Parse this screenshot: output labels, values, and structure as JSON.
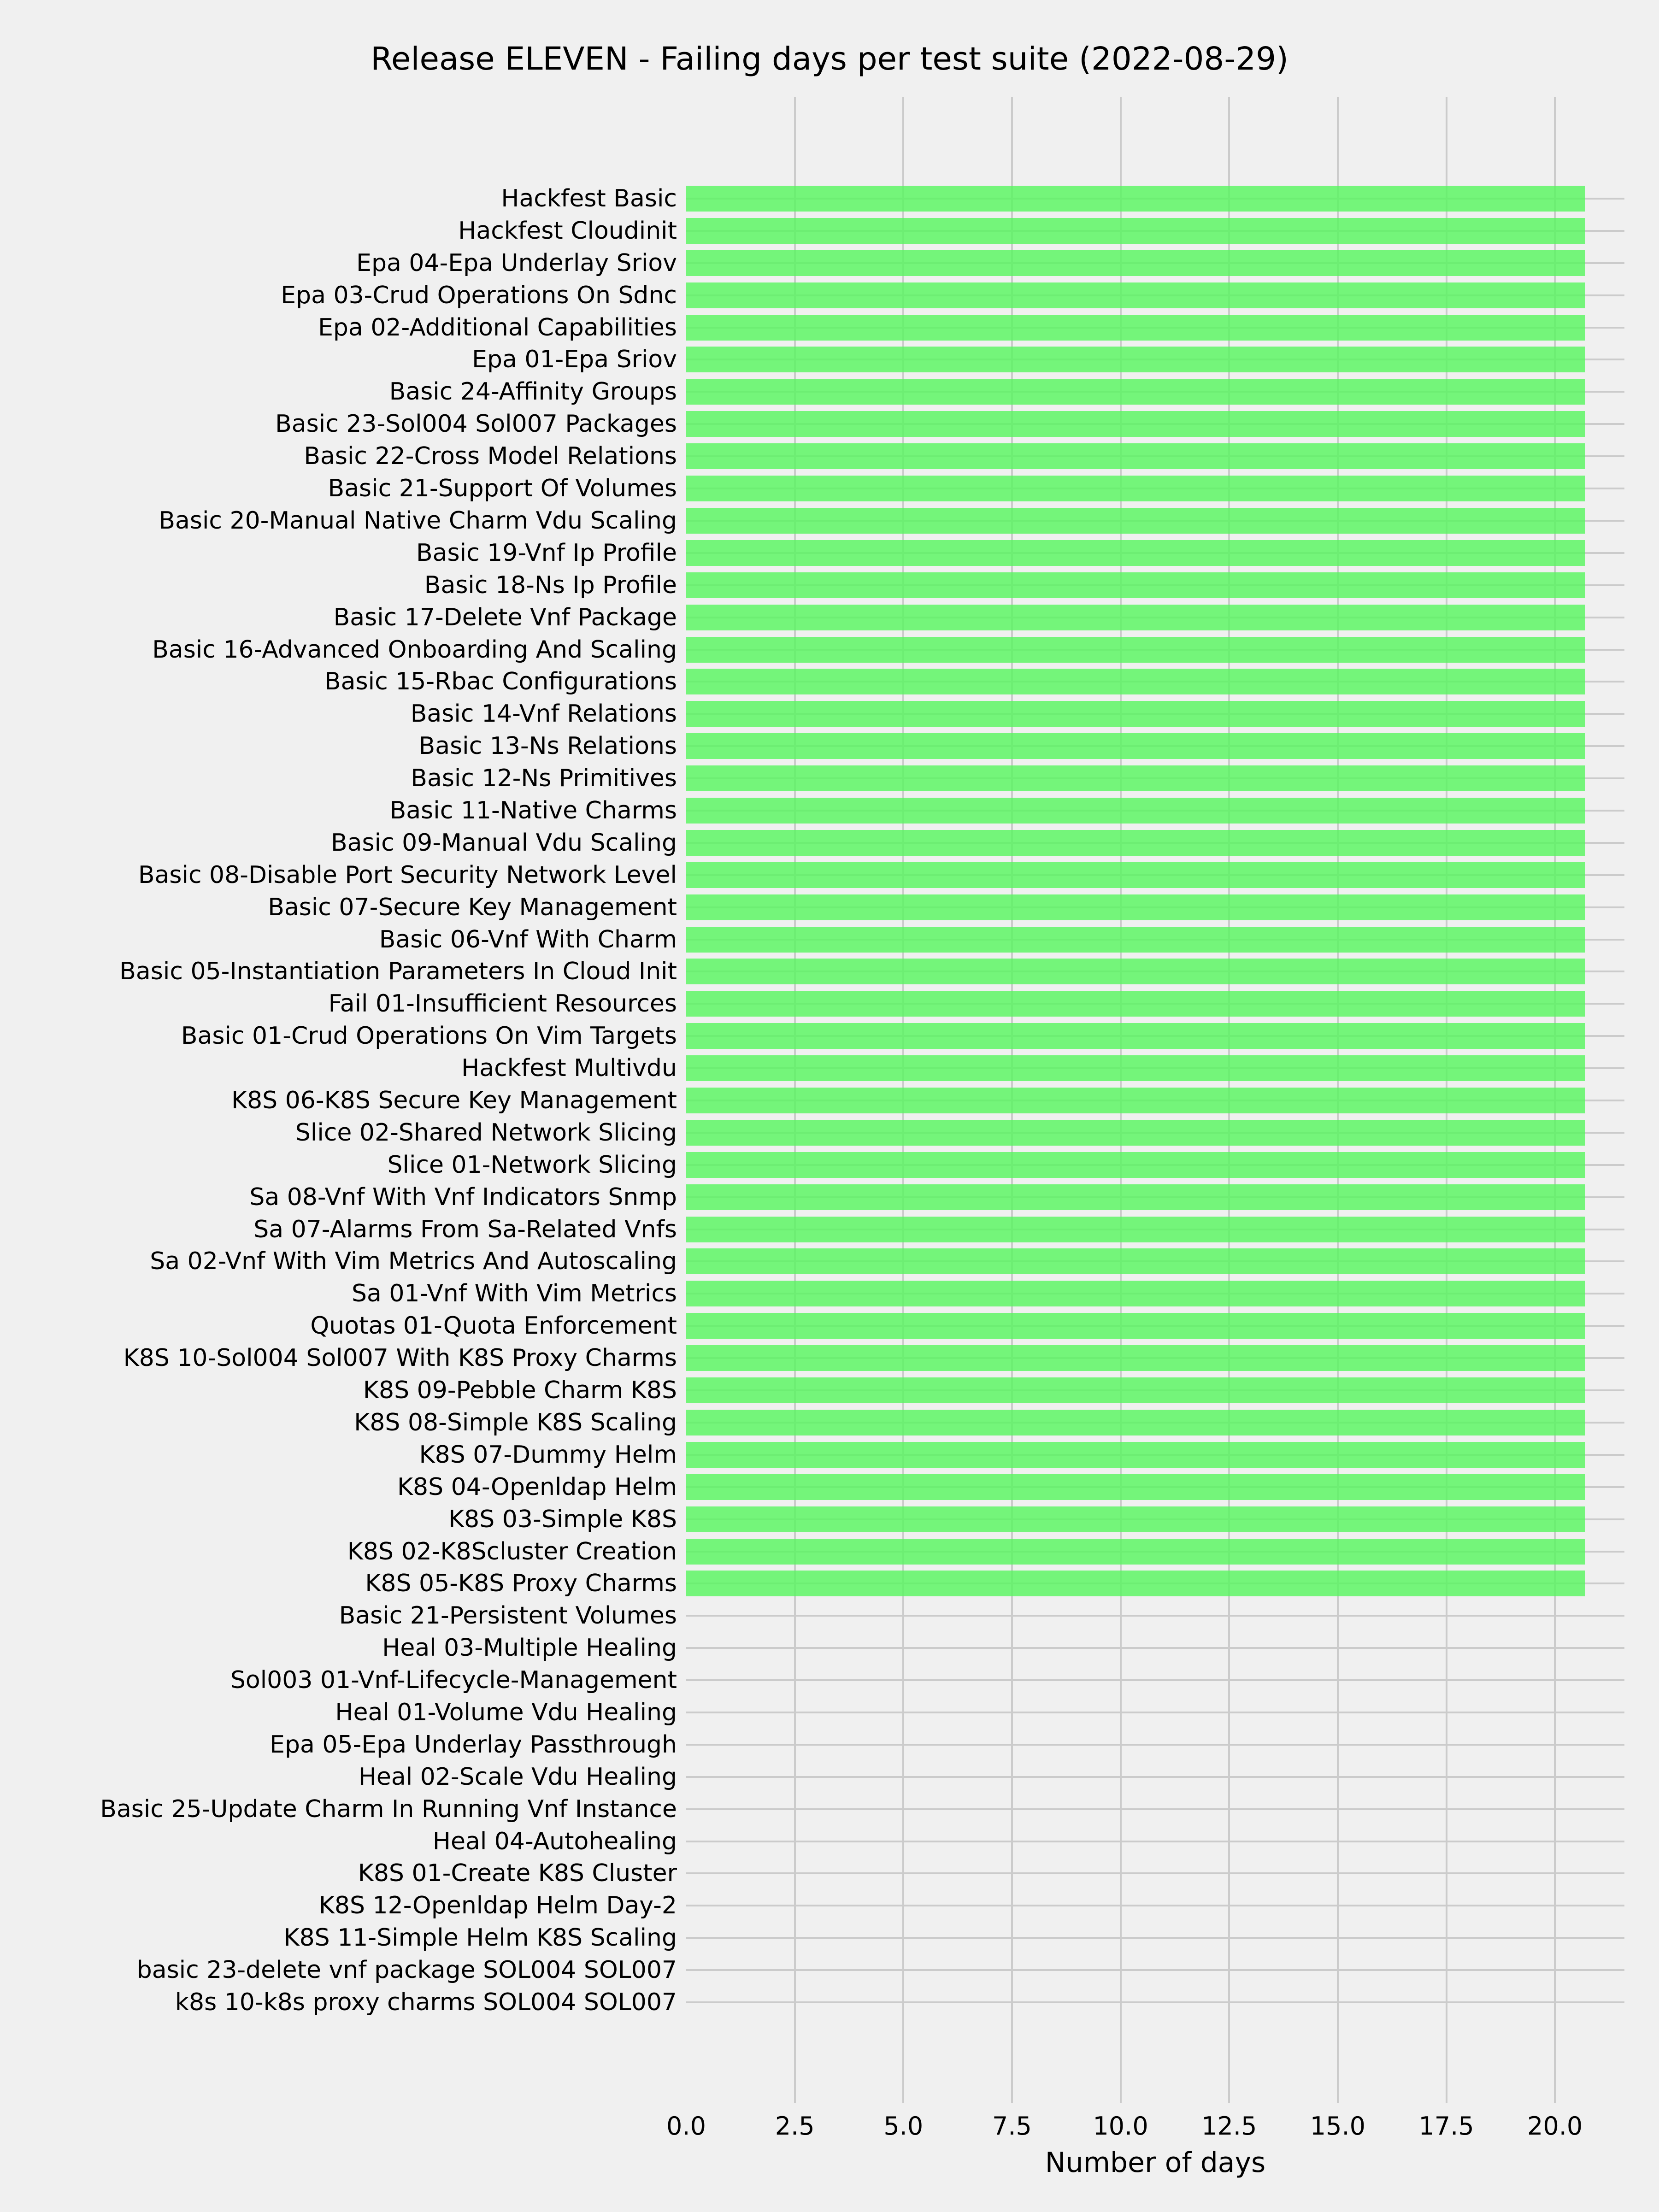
{
  "chart_data": {
    "type": "bar",
    "orientation": "horizontal",
    "title": "Release ELEVEN - Failing days per test suite (2022-08-29)",
    "xlabel": "Number of days",
    "ylabel": "",
    "grid": true,
    "legend": false,
    "xlim": [
      0,
      21.6
    ],
    "x_ticks": [
      "0.0",
      "2.5",
      "5.0",
      "7.5",
      "10.0",
      "12.5",
      "15.0",
      "17.5",
      "20.0"
    ],
    "bar_value_days": 20.7,
    "categories": [
      "Hackfest Basic",
      "Hackfest Cloudinit",
      "Epa 04-Epa Underlay Sriov",
      "Epa 03-Crud Operations On Sdnc",
      "Epa 02-Additional Capabilities",
      "Epa 01-Epa Sriov",
      "Basic 24-Affinity Groups",
      "Basic 23-Sol004 Sol007 Packages",
      "Basic 22-Cross Model Relations",
      "Basic 21-Support Of Volumes",
      "Basic 20-Manual Native Charm Vdu Scaling",
      "Basic 19-Vnf Ip Profile",
      "Basic 18-Ns Ip Profile",
      "Basic 17-Delete Vnf Package",
      "Basic 16-Advanced Onboarding And Scaling",
      "Basic 15-Rbac Configurations",
      "Basic 14-Vnf Relations",
      "Basic 13-Ns Relations",
      "Basic 12-Ns Primitives",
      "Basic 11-Native Charms",
      "Basic 09-Manual Vdu Scaling",
      "Basic 08-Disable Port Security Network Level",
      "Basic 07-Secure Key Management",
      "Basic 06-Vnf With Charm",
      "Basic 05-Instantiation Parameters In Cloud Init",
      "Fail 01-Insufficient Resources",
      "Basic 01-Crud Operations On Vim Targets",
      "Hackfest Multivdu",
      "K8S 06-K8S Secure Key Management",
      "Slice 02-Shared Network Slicing",
      "Slice 01-Network Slicing",
      "Sa 08-Vnf With Vnf Indicators Snmp",
      "Sa 07-Alarms From Sa-Related Vnfs",
      "Sa 02-Vnf With Vim Metrics And Autoscaling",
      "Sa 01-Vnf With Vim Metrics",
      "Quotas 01-Quota Enforcement",
      "K8S 10-Sol004 Sol007 With K8S Proxy Charms",
      "K8S 09-Pebble Charm K8S",
      "K8S 08-Simple K8S Scaling",
      "K8S 07-Dummy Helm",
      "K8S 04-Openldap Helm",
      "K8S 03-Simple K8S",
      "K8S 02-K8Scluster Creation",
      "K8S 05-K8S Proxy Charms",
      "Basic 21-Persistent Volumes",
      "Heal 03-Multiple Healing",
      "Sol003 01-Vnf-Lifecycle-Management",
      "Heal 01-Volume Vdu Healing",
      "Epa 05-Epa Underlay Passthrough",
      "Heal 02-Scale Vdu Healing",
      "Basic 25-Update Charm In Running Vnf Instance",
      "Heal 04-Autohealing",
      "K8S 01-Create K8S Cluster",
      "K8S 12-Openldap Helm Day-2",
      "K8S 11-Simple Helm K8S Scaling",
      "basic 23-delete vnf package SOL004 SOL007",
      "k8s 10-k8s proxy charms SOL004 SOL007"
    ],
    "values": [
      20.7,
      20.7,
      20.7,
      20.7,
      20.7,
      20.7,
      20.7,
      20.7,
      20.7,
      20.7,
      20.7,
      20.7,
      20.7,
      20.7,
      20.7,
      20.7,
      20.7,
      20.7,
      20.7,
      20.7,
      20.7,
      20.7,
      20.7,
      20.7,
      20.7,
      20.7,
      20.7,
      20.7,
      20.7,
      20.7,
      20.7,
      20.7,
      20.7,
      20.7,
      20.7,
      20.7,
      20.7,
      20.7,
      20.7,
      20.7,
      20.7,
      20.7,
      20.7,
      20.7,
      0,
      0,
      0,
      0,
      0,
      0,
      0,
      0,
      0,
      0,
      0,
      0,
      0
    ],
    "colors": {
      "background": "#f0f0f0",
      "grid": "#cbcbcb",
      "bar": "rgba(85,246,92,0.8)",
      "text": "#000000"
    }
  }
}
